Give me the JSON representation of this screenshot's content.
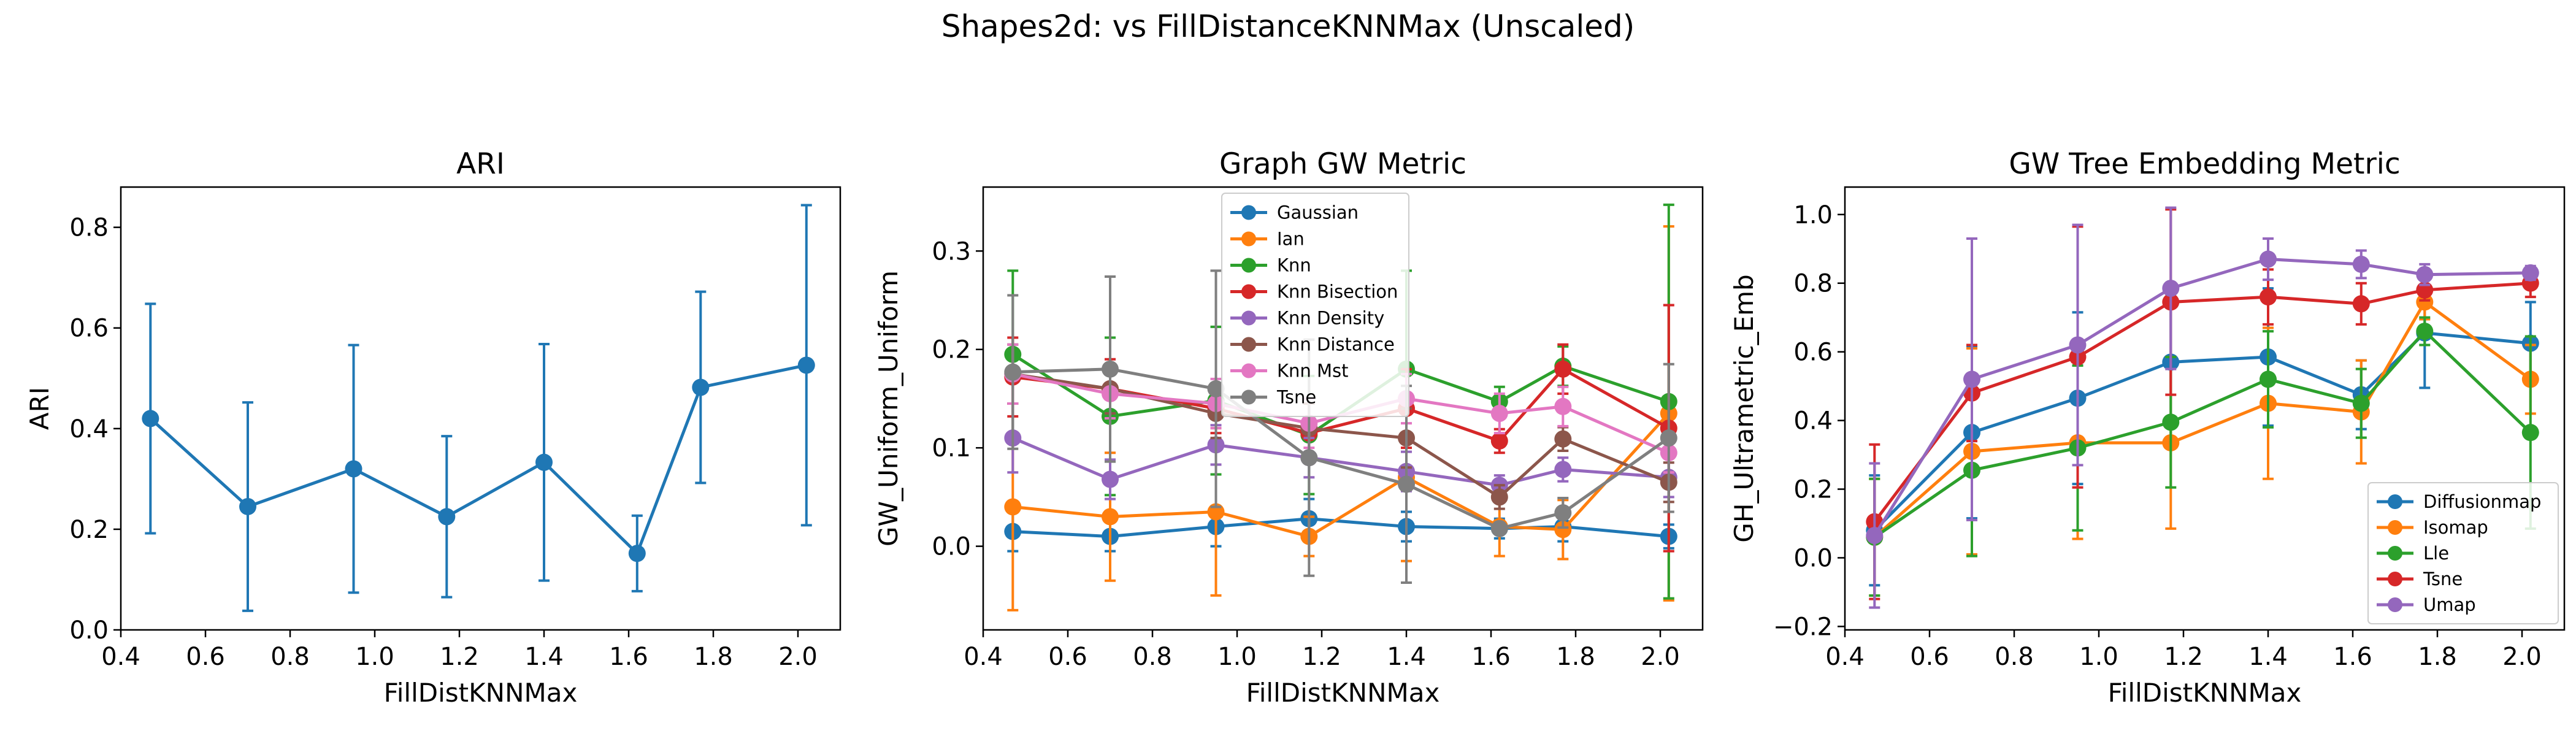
{
  "figure": {
    "suptitle": "Shapes2d: vs FillDistanceKNNMax (Unscaled)"
  },
  "colors": {
    "blue": "#1f77b4",
    "orange": "#ff7f0e",
    "green": "#2ca02c",
    "red": "#d62728",
    "purple": "#9467bd",
    "brown": "#8c564b",
    "pink": "#e377c2",
    "gray": "#7f7f7f"
  },
  "chart_data": [
    {
      "type": "line",
      "title": "ARI",
      "xlabel": "FillDistKNNMax",
      "ylabel": "ARI",
      "xlim": [
        0.4,
        2.1
      ],
      "ylim": [
        0.0,
        0.88
      ],
      "xticks": [
        "0.4",
        "0.6",
        "0.8",
        "1.0",
        "1.2",
        "1.4",
        "1.6",
        "1.8",
        "2.0"
      ],
      "yticks": [
        "0.0",
        "0.2",
        "0.4",
        "0.6",
        "0.8"
      ],
      "grid": false,
      "legend": "none",
      "x": [
        0.47,
        0.7,
        0.95,
        1.17,
        1.4,
        1.62,
        1.77,
        2.02
      ],
      "series": [
        {
          "color": "#1f77b4",
          "values": [
            0.42,
            0.245,
            0.32,
            0.225,
            0.333,
            0.152,
            0.482,
            0.526
          ],
          "err": [
            0.228,
            0.207,
            0.246,
            0.16,
            0.235,
            0.075,
            0.19,
            0.318
          ]
        }
      ]
    },
    {
      "type": "line",
      "title": "Graph GW Metric",
      "xlabel": "FillDistKNNMax",
      "ylabel": "GW_Uniform_Uniform",
      "xlim": [
        0.4,
        2.1
      ],
      "ylim": [
        -0.085,
        0.365
      ],
      "xticks": [
        "0.4",
        "0.6",
        "0.8",
        "1.0",
        "1.2",
        "1.4",
        "1.6",
        "1.8",
        "2.0"
      ],
      "yticks": [
        "0.0",
        "0.1",
        "0.2",
        "0.3"
      ],
      "grid": false,
      "legend": "upper-center",
      "x": [
        0.47,
        0.7,
        0.95,
        1.17,
        1.4,
        1.62,
        1.77,
        2.02
      ],
      "series": [
        {
          "name": "Gaussian",
          "color": "#1f77b4",
          "values": [
            0.015,
            0.01,
            0.02,
            0.028,
            0.02,
            0.018,
            0.02,
            0.01
          ],
          "err": [
            0.02,
            0.015,
            0.02,
            0.02,
            0.015,
            0.01,
            0.015,
            0.012
          ]
        },
        {
          "name": "Ian",
          "color": "#ff7f0e",
          "values": [
            0.04,
            0.03,
            0.035,
            0.01,
            0.07,
            0.02,
            0.017,
            0.135
          ],
          "err": [
            0.105,
            0.065,
            0.085,
            0.02,
            0.085,
            0.03,
            0.03,
            0.19
          ]
        },
        {
          "name": "Knn",
          "color": "#2ca02c",
          "values": [
            0.195,
            0.132,
            0.148,
            0.113,
            0.18,
            0.147,
            0.183,
            0.147
          ],
          "err": [
            0.085,
            0.08,
            0.075,
            0.06,
            0.1,
            0.015,
            0.02,
            0.2
          ]
        },
        {
          "name": "Knn Bisection",
          "color": "#d62728",
          "values": [
            0.172,
            0.16,
            0.14,
            0.115,
            0.14,
            0.107,
            0.18,
            0.12
          ],
          "err": [
            0.04,
            0.03,
            0.025,
            0.03,
            0.04,
            0.012,
            0.025,
            0.125
          ]
        },
        {
          "name": "Knn Density",
          "color": "#9467bd",
          "values": [
            0.11,
            0.068,
            0.103,
            0.09,
            0.076,
            0.062,
            0.078,
            0.07
          ],
          "err": [
            0.035,
            0.02,
            0.02,
            0.02,
            0.02,
            0.01,
            0.012,
            0.02
          ]
        },
        {
          "name": "Knn Distance",
          "color": "#8c564b",
          "values": [
            0.175,
            0.16,
            0.135,
            0.12,
            0.11,
            0.05,
            0.109,
            0.065
          ],
          "err": [
            0.03,
            0.025,
            0.025,
            0.025,
            0.03,
            0.012,
            0.012,
            0.02
          ]
        },
        {
          "name": "Knn Mst",
          "color": "#e377c2",
          "values": [
            0.175,
            0.155,
            0.145,
            0.125,
            0.15,
            0.135,
            0.142,
            0.095
          ],
          "err": [
            0.03,
            0.025,
            0.025,
            0.025,
            0.025,
            0.02,
            0.02,
            0.02
          ]
        },
        {
          "name": "Tsne",
          "color": "#7f7f7f",
          "values": [
            0.177,
            0.18,
            0.16,
            0.09,
            0.063,
            0.018,
            0.034,
            0.11
          ],
          "err": [
            0.078,
            0.094,
            0.12,
            0.12,
            0.1,
            0.005,
            0.015,
            0.075
          ]
        }
      ]
    },
    {
      "type": "line",
      "title": "GW Tree Embedding Metric",
      "xlabel": "FillDistKNNMax",
      "ylabel": "GH_Ultrametric_Emb",
      "xlim": [
        0.4,
        2.1
      ],
      "ylim": [
        -0.21,
        1.08
      ],
      "xticks": [
        "0.4",
        "0.6",
        "0.8",
        "1.0",
        "1.2",
        "1.4",
        "1.6",
        "1.8",
        "2.0"
      ],
      "yticks": [
        "−0.2",
        "0.0",
        "0.2",
        "0.4",
        "0.6",
        "0.8",
        "1.0"
      ],
      "grid": false,
      "legend": "lower-right",
      "x": [
        0.47,
        0.7,
        0.95,
        1.17,
        1.4,
        1.62,
        1.77,
        2.02
      ],
      "series": [
        {
          "name": "Diffusionmap",
          "color": "#1f77b4",
          "values": [
            0.08,
            0.365,
            0.465,
            0.57,
            0.585,
            0.475,
            0.655,
            0.625
          ],
          "err": [
            0.16,
            0.25,
            0.25,
            0.23,
            0.2,
            0.1,
            0.16,
            0.12
          ]
        },
        {
          "name": "Isomap",
          "color": "#ff7f0e",
          "values": [
            0.06,
            0.31,
            0.335,
            0.335,
            0.45,
            0.425,
            0.745,
            0.52
          ],
          "err": [
            0.17,
            0.3,
            0.28,
            0.25,
            0.22,
            0.15,
            0.05,
            0.1
          ]
        },
        {
          "name": "Lle",
          "color": "#2ca02c",
          "values": [
            0.06,
            0.255,
            0.32,
            0.395,
            0.52,
            0.45,
            0.66,
            0.365
          ],
          "err": [
            0.17,
            0.25,
            0.24,
            0.19,
            0.14,
            0.1,
            0.04,
            0.28
          ]
        },
        {
          "name": "Tsne",
          "color": "#d62728",
          "values": [
            0.105,
            0.48,
            0.585,
            0.745,
            0.76,
            0.74,
            0.78,
            0.8
          ],
          "err": [
            0.225,
            0.14,
            0.38,
            0.27,
            0.08,
            0.06,
            0.03,
            0.04
          ]
        },
        {
          "name": "Umap",
          "color": "#9467bd",
          "values": [
            0.065,
            0.52,
            0.62,
            0.785,
            0.87,
            0.855,
            0.825,
            0.83
          ],
          "err": [
            0.21,
            0.41,
            0.35,
            0.235,
            0.06,
            0.04,
            0.03,
            0.02
          ]
        }
      ]
    }
  ]
}
